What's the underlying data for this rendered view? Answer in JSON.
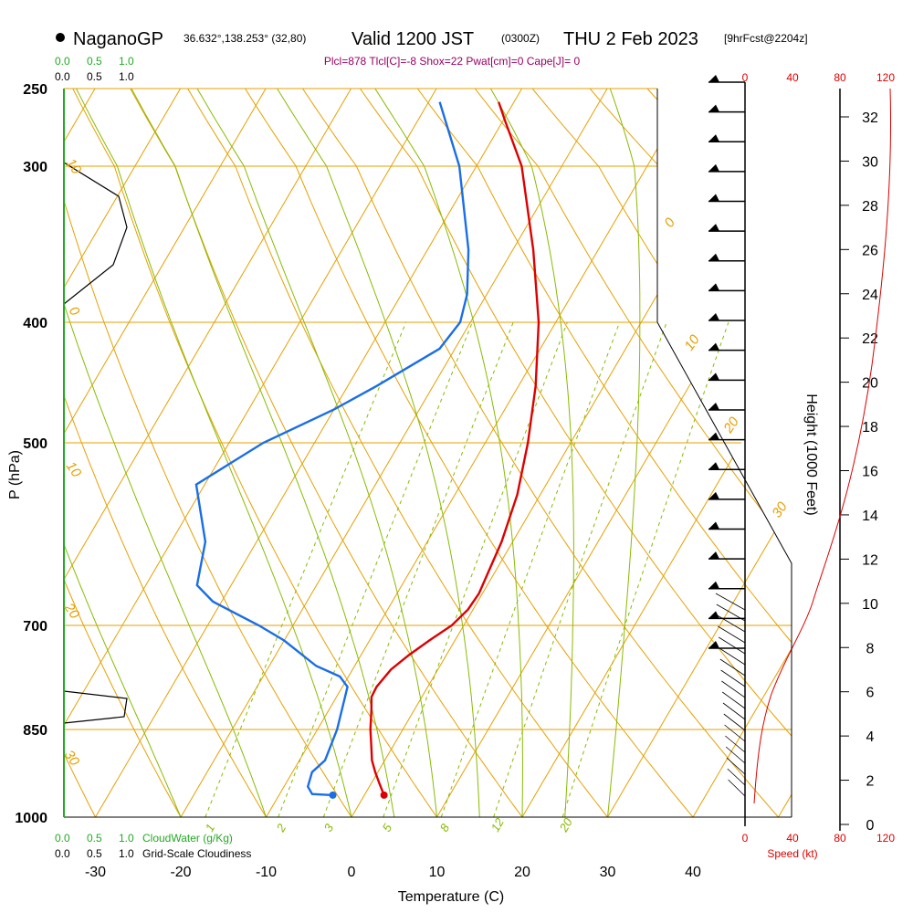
{
  "title": {
    "station": "NaganoGP",
    "coords": "36.632°,138.253° (32,80)",
    "valid_main": "Valid 1200 JST",
    "valid_utc": "(0300Z)",
    "date": "THU 2 Feb 2023",
    "forecast": "[9hrFcst@2204z]"
  },
  "indices_text": "Plcl=878 Tlcl[C]=-8 Shox=22 Pwat[cm]=0 Cape[J]= 0",
  "cloud_scale": {
    "values": [
      "0.0",
      "0.5",
      "1.0"
    ],
    "cloudwater_label": "CloudWater (g/Kg)",
    "cloudiness_label": "Grid-Scale Cloudiness"
  },
  "speed_axis": {
    "ticks": [
      "0",
      "40",
      "80",
      "120"
    ],
    "label": "Speed (kt)"
  },
  "height_axis": {
    "label": "Height (1000 Feet)",
    "ticks": [
      "0",
      "2",
      "4",
      "6",
      "8",
      "10",
      "12",
      "14",
      "16",
      "18",
      "20",
      "22",
      "24",
      "26",
      "28",
      "30",
      "32"
    ]
  },
  "pressure_axis": {
    "label": "P (hPa)",
    "ticks": [
      "250",
      "300",
      "400",
      "500",
      "700",
      "850",
      "1000"
    ]
  },
  "temp_axis": {
    "label": "Temperature (C)",
    "ticks": [
      "-30",
      "-20",
      "-10",
      "0",
      "10",
      "20",
      "30",
      "40"
    ]
  },
  "isotherm_labels": [
    "0",
    "10",
    "20",
    "30"
  ],
  "dry_adiabat_labels": [
    "10",
    "0",
    "10",
    "20",
    "30"
  ],
  "mixing_ratio_labels": [
    "1",
    "2",
    "3",
    "5",
    "8",
    "12",
    "20"
  ],
  "colors": {
    "temperature": "#dd0000",
    "dewpoint": "#1a6ee6",
    "isotherm": "#e6a000",
    "dry_adiabat": "#e6a000",
    "moist_adiabat": "#88bb00",
    "mixing_ratio": "#88bb00",
    "cloud_axis": "#22aa22",
    "wind_speed": "#dd0000"
  },
  "chart_data": {
    "type": "skew-T log-P sounding",
    "xlabel": "Temperature (C)",
    "ylabel": "P (hPa)",
    "xlim": [
      -33,
      36
    ],
    "ylim_hpa": [
      1000,
      250
    ],
    "temperature_profile": [
      {
        "p": 960,
        "t": 2.3
      },
      {
        "p": 940,
        "t": 1.0
      },
      {
        "p": 920,
        "t": -0.3
      },
      {
        "p": 900,
        "t": -1.5
      },
      {
        "p": 880,
        "t": -2.4
      },
      {
        "p": 850,
        "t": -3.8
      },
      {
        "p": 820,
        "t": -5.0
      },
      {
        "p": 800,
        "t": -5.9
      },
      {
        "p": 785,
        "t": -6.0
      },
      {
        "p": 760,
        "t": -5.5
      },
      {
        "p": 740,
        "t": -4.4
      },
      {
        "p": 720,
        "t": -3.0
      },
      {
        "p": 700,
        "t": -1.4
      },
      {
        "p": 680,
        "t": -0.6
      },
      {
        "p": 660,
        "t": -0.4
      },
      {
        "p": 600,
        "t": -1.3
      },
      {
        "p": 550,
        "t": -2.7
      },
      {
        "p": 500,
        "t": -5.0
      },
      {
        "p": 450,
        "t": -8.0
      },
      {
        "p": 400,
        "t": -12.0
      },
      {
        "p": 350,
        "t": -17.6
      },
      {
        "p": 300,
        "t": -24.7
      },
      {
        "p": 270,
        "t": -29.7
      },
      {
        "p": 258,
        "t": -31.8
      }
    ],
    "dewpoint_profile": [
      {
        "p": 960,
        "t": -3.7
      },
      {
        "p": 958,
        "t": -6.2
      },
      {
        "p": 945,
        "t": -7.2
      },
      {
        "p": 920,
        "t": -7.7
      },
      {
        "p": 900,
        "t": -7.0
      },
      {
        "p": 850,
        "t": -7.7
      },
      {
        "p": 800,
        "t": -9.0
      },
      {
        "p": 785,
        "t": -9.4
      },
      {
        "p": 770,
        "t": -11.0
      },
      {
        "p": 755,
        "t": -14.5
      },
      {
        "p": 720,
        "t": -20.0
      },
      {
        "p": 700,
        "t": -24.0
      },
      {
        "p": 670,
        "t": -31.0
      },
      {
        "p": 650,
        "t": -34.0
      },
      {
        "p": 600,
        "t": -36.0
      },
      {
        "p": 540,
        "t": -41.0
      },
      {
        "p": 500,
        "t": -36.0
      },
      {
        "p": 470,
        "t": -30.0
      },
      {
        "p": 450,
        "t": -26.6
      },
      {
        "p": 420,
        "t": -21.8
      },
      {
        "p": 400,
        "t": -21.2
      },
      {
        "p": 380,
        "t": -22.3
      },
      {
        "p": 350,
        "t": -25.2
      },
      {
        "p": 300,
        "t": -32.0
      },
      {
        "p": 258,
        "t": -38.7
      }
    ],
    "surface_points": {
      "temperature_c": 2.3,
      "dewpoint_c": -3.7
    }
  }
}
